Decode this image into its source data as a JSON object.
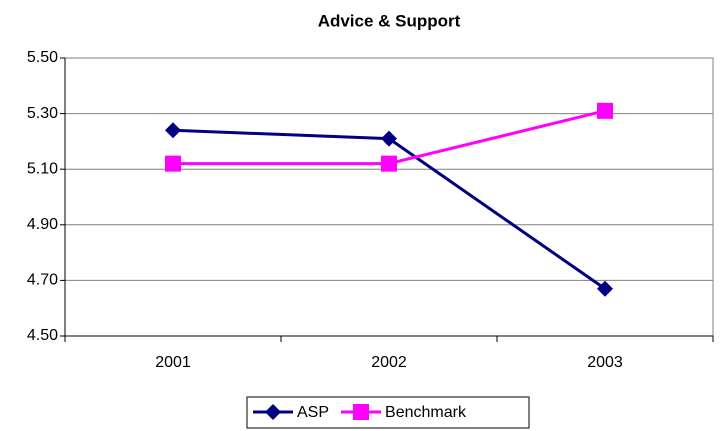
{
  "chart_data": {
    "type": "line",
    "title": "Advice & Support",
    "categories": [
      "2001",
      "2002",
      "2003"
    ],
    "series": [
      {
        "name": "ASP",
        "color": "#000080",
        "marker": "diamond",
        "values": [
          5.24,
          5.21,
          4.67
        ]
      },
      {
        "name": "Benchmark",
        "color": "#ff00ff",
        "marker": "square",
        "values": [
          5.12,
          5.12,
          5.31
        ]
      }
    ],
    "ylim": [
      4.5,
      5.5
    ],
    "yticks": [
      {
        "value": 4.5,
        "label": "4.50"
      },
      {
        "value": 4.7,
        "label": "4.70"
      },
      {
        "value": 4.9,
        "label": "4.90"
      },
      {
        "value": 5.1,
        "label": "5.10"
      },
      {
        "value": 5.3,
        "label": "5.30"
      },
      {
        "value": 5.5,
        "label": "5.50"
      }
    ],
    "grid": true,
    "legend": "bottom"
  }
}
